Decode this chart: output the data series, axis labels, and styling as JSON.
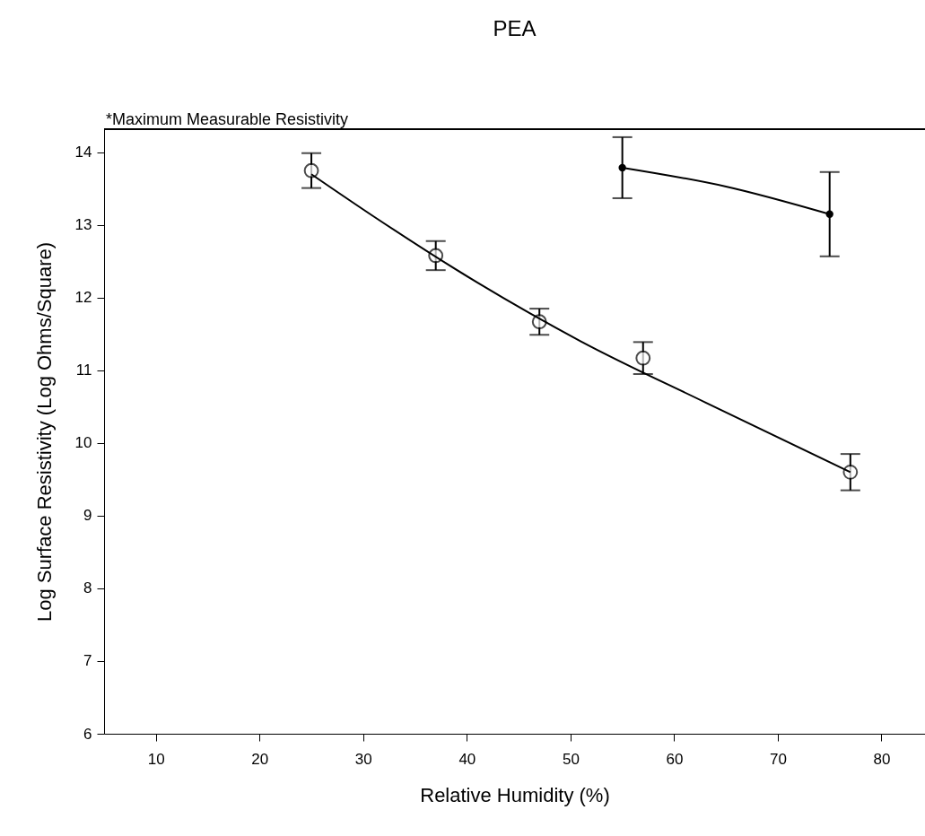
{
  "chart_data": {
    "type": "scatter",
    "title": "PEA",
    "xlabel": "Relative Humidity (%)",
    "ylabel": "Log Surface Resistivity (Log Ohms/Square)",
    "xlim": [
      5,
      84.2
    ],
    "ylim": [
      6,
      14.32
    ],
    "xticks": [
      10,
      20,
      30,
      40,
      50,
      60,
      70,
      80
    ],
    "yticks": [
      6,
      7,
      8,
      9,
      10,
      11,
      12,
      13,
      14
    ],
    "grid": false,
    "annotations": [
      "*Maximum Measurable Resistivity"
    ],
    "series": [
      {
        "marker": "circle",
        "color": "#000000",
        "x": [
          25,
          37,
          47,
          57,
          77
        ],
        "values": [
          13.75,
          12.58,
          11.67,
          11.17,
          9.6
        ],
        "errors": [
          0.24,
          0.2,
          0.18,
          0.22,
          0.25
        ]
      },
      {
        "type": "line",
        "marker": "none",
        "color": "#000000",
        "x": [
          25,
          31,
          41,
          51,
          63,
          77
        ],
        "values": [
          13.7,
          13.12,
          12.21,
          11.4,
          10.56,
          9.6
        ]
      },
      {
        "type": "line",
        "marker": "circle",
        "color": "#000000",
        "x": [
          55,
          65,
          75
        ],
        "values": [
          13.79,
          13.53,
          13.15
        ],
        "errors": [
          0.42,
          null,
          0.58
        ]
      }
    ]
  }
}
